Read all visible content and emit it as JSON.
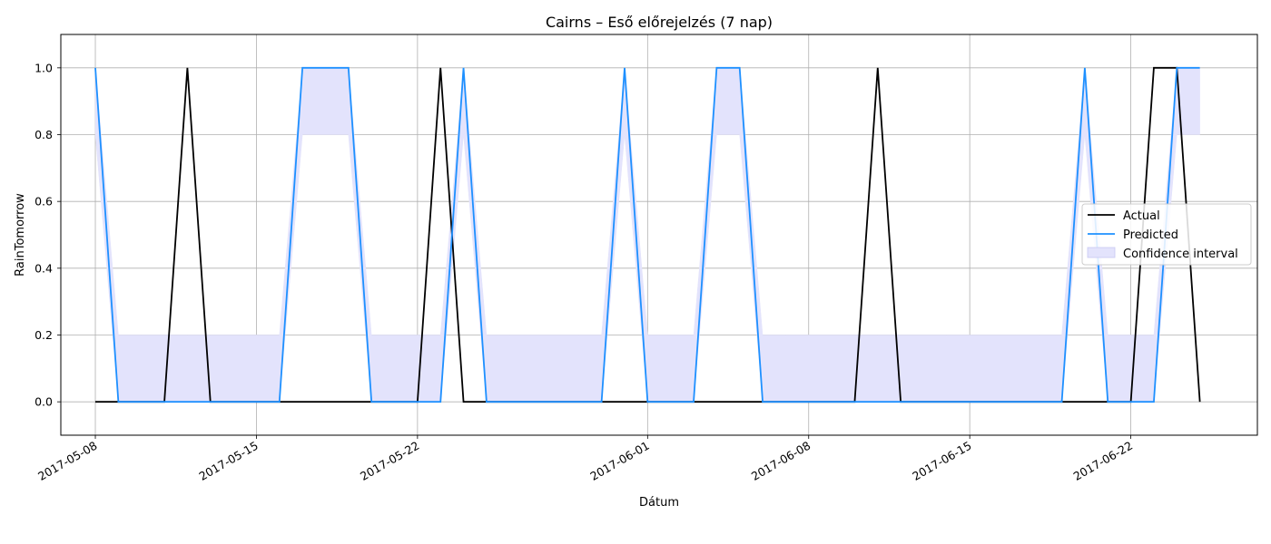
{
  "chart_data": {
    "type": "line",
    "title": "Cairns – Eső előrejelzés (7 nap)",
    "xlabel": "Dátum",
    "ylabel": "RainTomorrow",
    "ylim": [
      -0.1,
      1.1
    ],
    "xlim": [
      "2017-05-06T12:00",
      "2017-06-27T12:00"
    ],
    "x_ticks": [
      "2017-05-08",
      "2017-05-15",
      "2017-05-22",
      "2017-06-01",
      "2017-06-08",
      "2017-06-15",
      "2017-06-22"
    ],
    "y_ticks": [
      0.0,
      0.2,
      0.4,
      0.6,
      0.8,
      1.0
    ],
    "y_tick_labels": [
      "0.0",
      "0.2",
      "0.4",
      "0.6",
      "0.8",
      "1.0"
    ],
    "grid": true,
    "legend_position": "center-right",
    "legend": [
      "Actual",
      "Predicted",
      "Confidence interval"
    ],
    "colors": {
      "actual": "#000000",
      "predicted": "#1e90ff",
      "confidence": "#e3e3fc"
    },
    "x": [
      "2017-05-08",
      "2017-05-09",
      "2017-05-10",
      "2017-05-11",
      "2017-05-12",
      "2017-05-13",
      "2017-05-14",
      "2017-05-15",
      "2017-05-16",
      "2017-05-17",
      "2017-05-18",
      "2017-05-19",
      "2017-05-20",
      "2017-05-21",
      "2017-05-22",
      "2017-05-23",
      "2017-05-24",
      "2017-05-25",
      "2017-05-26",
      "2017-05-27",
      "2017-05-28",
      "2017-05-29",
      "2017-05-30",
      "2017-05-31",
      "2017-06-01",
      "2017-06-02",
      "2017-06-03",
      "2017-06-04",
      "2017-06-05",
      "2017-06-06",
      "2017-06-07",
      "2017-06-08",
      "2017-06-09",
      "2017-06-10",
      "2017-06-11",
      "2017-06-12",
      "2017-06-13",
      "2017-06-14",
      "2017-06-15",
      "2017-06-16",
      "2017-06-17",
      "2017-06-18",
      "2017-06-19",
      "2017-06-20",
      "2017-06-21",
      "2017-06-22",
      "2017-06-23",
      "2017-06-24",
      "2017-06-25"
    ],
    "series": [
      {
        "name": "Actual",
        "values": [
          0,
          0,
          0,
          0,
          1,
          0,
          0,
          0,
          0,
          0,
          0,
          0,
          0,
          0,
          0,
          1,
          0,
          0,
          0,
          0,
          0,
          0,
          0,
          0,
          0,
          0,
          0,
          0,
          0,
          0,
          0,
          0,
          0,
          0,
          1,
          0,
          0,
          0,
          0,
          0,
          0,
          0,
          0,
          0,
          0,
          0,
          1,
          1,
          0
        ]
      },
      {
        "name": "Predicted",
        "values": [
          1,
          0,
          0,
          0,
          0,
          0,
          0,
          0,
          0,
          1,
          1,
          1,
          0,
          0,
          0,
          0,
          1,
          0,
          0,
          0,
          0,
          0,
          0,
          1,
          0,
          0,
          0,
          1,
          1,
          0,
          0,
          0,
          0,
          0,
          0,
          0,
          0,
          0,
          0,
          0,
          0,
          0,
          0,
          1,
          0,
          0,
          0,
          1,
          1
        ]
      }
    ],
    "confidence_interval": {
      "name": "Confidence interval",
      "lower": [
        0.8,
        0,
        0,
        0,
        0,
        0,
        0,
        0,
        0,
        0.8,
        0.8,
        0.8,
        0,
        0,
        0,
        0,
        0.8,
        0,
        0,
        0,
        0,
        0,
        0,
        0.8,
        0,
        0,
        0,
        0.8,
        0.8,
        0,
        0,
        0,
        0,
        0,
        0,
        0,
        0,
        0,
        0,
        0,
        0,
        0,
        0,
        0.8,
        0,
        0,
        0,
        0.8,
        0.8
      ],
      "upper": [
        1,
        0.2,
        0.2,
        0.2,
        0.2,
        0.2,
        0.2,
        0.2,
        0.2,
        1,
        1,
        1,
        0.2,
        0.2,
        0.2,
        0.2,
        1,
        0.2,
        0.2,
        0.2,
        0.2,
        0.2,
        0.2,
        1,
        0.2,
        0.2,
        0.2,
        1,
        1,
        0.2,
        0.2,
        0.2,
        0.2,
        0.2,
        0.2,
        0.2,
        0.2,
        0.2,
        0.2,
        0.2,
        0.2,
        0.2,
        0.2,
        1,
        0.2,
        0.2,
        0.2,
        1,
        1
      ]
    }
  }
}
